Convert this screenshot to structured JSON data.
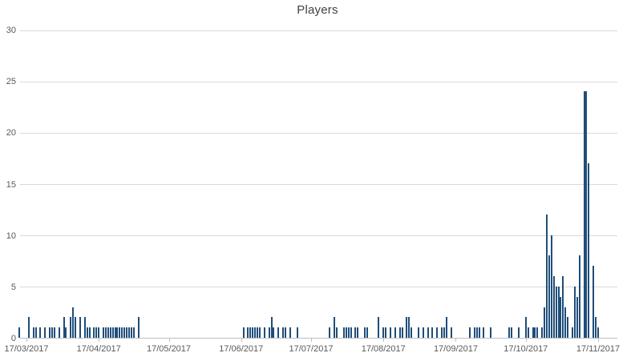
{
  "chart_data": {
    "type": "bar",
    "title": "Players",
    "xlabel": "",
    "ylabel": "",
    "ylim": [
      0,
      30
    ],
    "yticks": [
      0,
      5,
      10,
      15,
      20,
      25,
      30
    ],
    "grid": "horizontal",
    "legend": "none",
    "bar_color": "#1f4e79",
    "axis_color": "#bfbfbf",
    "gridline_color": "#d9d9d9",
    "label_color": "#595959",
    "x_axis": {
      "tick_labels": [
        "17/03/2017",
        "17/04/2017",
        "17/05/2017",
        "17/06/2017",
        "17/07/2017",
        "17/08/2017",
        "17/09/2017",
        "17/10/2017",
        "17/11/2017"
      ]
    },
    "points": [
      {
        "date": "14/03/2017",
        "value": 1
      },
      {
        "date": "18/03/2017",
        "value": 2
      },
      {
        "date": "20/03/2017",
        "value": 1
      },
      {
        "date": "21/03/2017",
        "value": 1
      },
      {
        "date": "23/03/2017",
        "value": 1
      },
      {
        "date": "25/03/2017",
        "value": 1
      },
      {
        "date": "27/03/2017",
        "value": 1
      },
      {
        "date": "28/03/2017",
        "value": 1
      },
      {
        "date": "29/03/2017",
        "value": 1
      },
      {
        "date": "31/03/2017",
        "value": 1
      },
      {
        "date": "02/04/2017",
        "value": 2
      },
      {
        "date": "03/04/2017",
        "value": 1
      },
      {
        "date": "05/04/2017",
        "value": 2
      },
      {
        "date": "06/04/2017",
        "value": 3
      },
      {
        "date": "07/04/2017",
        "value": 2
      },
      {
        "date": "09/04/2017",
        "value": 2
      },
      {
        "date": "11/04/2017",
        "value": 2
      },
      {
        "date": "12/04/2017",
        "value": 1
      },
      {
        "date": "13/04/2017",
        "value": 1
      },
      {
        "date": "15/04/2017",
        "value": 1
      },
      {
        "date": "16/04/2017",
        "value": 1
      },
      {
        "date": "17/04/2017",
        "value": 1
      },
      {
        "date": "19/04/2017",
        "value": 1
      },
      {
        "date": "20/04/2017",
        "value": 1
      },
      {
        "date": "21/04/2017",
        "value": 1
      },
      {
        "date": "22/04/2017",
        "value": 1
      },
      {
        "date": "23/04/2017",
        "value": 1
      },
      {
        "date": "24/04/2017",
        "value": 1
      },
      {
        "date": "25/04/2017",
        "value": 1
      },
      {
        "date": "26/04/2017",
        "value": 1
      },
      {
        "date": "27/04/2017",
        "value": 1
      },
      {
        "date": "28/04/2017",
        "value": 1
      },
      {
        "date": "29/04/2017",
        "value": 1
      },
      {
        "date": "30/04/2017",
        "value": 1
      },
      {
        "date": "01/05/2017",
        "value": 1
      },
      {
        "date": "02/05/2017",
        "value": 1
      },
      {
        "date": "04/05/2017",
        "value": 2
      },
      {
        "date": "18/06/2017",
        "value": 1
      },
      {
        "date": "20/06/2017",
        "value": 1
      },
      {
        "date": "21/06/2017",
        "value": 1
      },
      {
        "date": "22/06/2017",
        "value": 1
      },
      {
        "date": "23/06/2017",
        "value": 1
      },
      {
        "date": "24/06/2017",
        "value": 1
      },
      {
        "date": "25/06/2017",
        "value": 1
      },
      {
        "date": "27/06/2017",
        "value": 1
      },
      {
        "date": "29/06/2017",
        "value": 1
      },
      {
        "date": "30/06/2017",
        "value": 2
      },
      {
        "date": "01/07/2017",
        "value": 1
      },
      {
        "date": "03/07/2017",
        "value": 1
      },
      {
        "date": "05/07/2017",
        "value": 1
      },
      {
        "date": "06/07/2017",
        "value": 1
      },
      {
        "date": "08/07/2017",
        "value": 1
      },
      {
        "date": "11/07/2017",
        "value": 1
      },
      {
        "date": "25/07/2017",
        "value": 1
      },
      {
        "date": "27/07/2017",
        "value": 2
      },
      {
        "date": "28/07/2017",
        "value": 1
      },
      {
        "date": "31/07/2017",
        "value": 1
      },
      {
        "date": "01/08/2017",
        "value": 1
      },
      {
        "date": "02/08/2017",
        "value": 1
      },
      {
        "date": "03/08/2017",
        "value": 1
      },
      {
        "date": "05/08/2017",
        "value": 1
      },
      {
        "date": "06/08/2017",
        "value": 1
      },
      {
        "date": "09/08/2017",
        "value": 1
      },
      {
        "date": "10/08/2017",
        "value": 1
      },
      {
        "date": "15/08/2017",
        "value": 2
      },
      {
        "date": "17/08/2017",
        "value": 1
      },
      {
        "date": "18/08/2017",
        "value": 1
      },
      {
        "date": "20/08/2017",
        "value": 1
      },
      {
        "date": "22/08/2017",
        "value": 1
      },
      {
        "date": "24/08/2017",
        "value": 1
      },
      {
        "date": "25/08/2017",
        "value": 1
      },
      {
        "date": "27/08/2017",
        "value": 2
      },
      {
        "date": "28/08/2017",
        "value": 2
      },
      {
        "date": "29/08/2017",
        "value": 1
      },
      {
        "date": "01/09/2017",
        "value": 1
      },
      {
        "date": "03/09/2017",
        "value": 1
      },
      {
        "date": "05/09/2017",
        "value": 1
      },
      {
        "date": "07/09/2017",
        "value": 1
      },
      {
        "date": "09/09/2017",
        "value": 1
      },
      {
        "date": "11/09/2017",
        "value": 1
      },
      {
        "date": "12/09/2017",
        "value": 1
      },
      {
        "date": "13/09/2017",
        "value": 2
      },
      {
        "date": "15/09/2017",
        "value": 1
      },
      {
        "date": "23/09/2017",
        "value": 1
      },
      {
        "date": "25/09/2017",
        "value": 1
      },
      {
        "date": "26/09/2017",
        "value": 1
      },
      {
        "date": "27/09/2017",
        "value": 1
      },
      {
        "date": "29/09/2017",
        "value": 1
      },
      {
        "date": "02/10/2017",
        "value": 1
      },
      {
        "date": "10/10/2017",
        "value": 1
      },
      {
        "date": "11/10/2017",
        "value": 1
      },
      {
        "date": "14/10/2017",
        "value": 1
      },
      {
        "date": "17/10/2017",
        "value": 2
      },
      {
        "date": "18/10/2017",
        "value": 1
      },
      {
        "date": "20/10/2017",
        "value": 1
      },
      {
        "date": "21/10/2017",
        "value": 1
      },
      {
        "date": "22/10/2017",
        "value": 1
      },
      {
        "date": "24/10/2017",
        "value": 1
      },
      {
        "date": "25/10/2017",
        "value": 3
      },
      {
        "date": "26/10/2017",
        "value": 12
      },
      {
        "date": "27/10/2017",
        "value": 8
      },
      {
        "date": "28/10/2017",
        "value": 10
      },
      {
        "date": "29/10/2017",
        "value": 6
      },
      {
        "date": "30/10/2017",
        "value": 5
      },
      {
        "date": "31/10/2017",
        "value": 5
      },
      {
        "date": "01/11/2017",
        "value": 4
      },
      {
        "date": "02/11/2017",
        "value": 6
      },
      {
        "date": "03/11/2017",
        "value": 3
      },
      {
        "date": "04/11/2017",
        "value": 2
      },
      {
        "date": "06/11/2017",
        "value": 1
      },
      {
        "date": "07/11/2017",
        "value": 5
      },
      {
        "date": "08/11/2017",
        "value": 4
      },
      {
        "date": "09/11/2017",
        "value": 8
      },
      {
        "date": "11/11/2017",
        "value": 24
      },
      {
        "date": "12/11/2017",
        "value": 24
      },
      {
        "date": "13/11/2017",
        "value": 17
      },
      {
        "date": "15/11/2017",
        "value": 7
      },
      {
        "date": "16/11/2017",
        "value": 2
      },
      {
        "date": "17/11/2017",
        "value": 1
      }
    ]
  }
}
